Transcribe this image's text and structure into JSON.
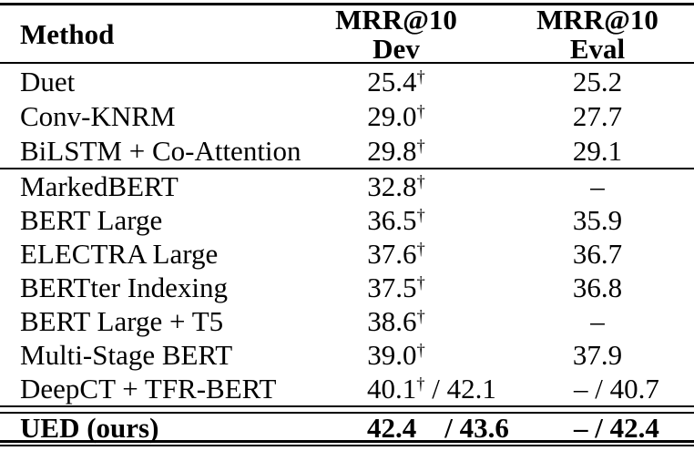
{
  "page": {
    "background_color": "#ffffff",
    "text_color": "#000000"
  },
  "table": {
    "header": {
      "method_label": "Method",
      "dev_col": {
        "line1": "MRR@10",
        "line2": "Dev"
      },
      "eval_col": {
        "line1": "MRR@10",
        "line2": "Eval"
      }
    },
    "dagger_symbol": "†",
    "sections": [
      {
        "rows": [
          {
            "method": "Duet",
            "dev": "25.4",
            "dev_sup": "†",
            "dev_extra": "",
            "eval": "25.2",
            "bold": false,
            "dual": false
          },
          {
            "method": "Conv-KNRM",
            "dev": "29.0",
            "dev_sup": "†",
            "dev_extra": "",
            "eval": "27.7",
            "bold": false,
            "dual": false
          },
          {
            "method": "BiLSTM + Co-Attention",
            "dev": "29.8",
            "dev_sup": "†",
            "dev_extra": "",
            "eval": "29.1",
            "bold": false,
            "dual": false
          }
        ]
      },
      {
        "rows": [
          {
            "method": "MarkedBERT",
            "dev": "32.8",
            "dev_sup": "†",
            "dev_extra": "",
            "eval": "–",
            "bold": false,
            "dual": false
          },
          {
            "method": "BERT Large",
            "dev": "36.5",
            "dev_sup": "†",
            "dev_extra": "",
            "eval": "35.9",
            "bold": false,
            "dual": false
          },
          {
            "method": "ELECTRA Large",
            "dev": "37.6",
            "dev_sup": "†",
            "dev_extra": "",
            "eval": "36.7",
            "bold": false,
            "dual": false
          },
          {
            "method": "BERTter Indexing",
            "dev": "37.5",
            "dev_sup": "†",
            "dev_extra": "",
            "eval": "36.8",
            "bold": false,
            "dual": false
          },
          {
            "method": "BERT Large + T5",
            "dev": "38.6",
            "dev_sup": "†",
            "dev_extra": "",
            "eval": "–",
            "bold": false,
            "dual": false
          },
          {
            "method": "Multi-Stage BERT",
            "dev": "39.0",
            "dev_sup": "†",
            "dev_extra": "",
            "eval": "37.9",
            "bold": false,
            "dual": false
          },
          {
            "method": "DeepCT + TFR-BERT",
            "dev": "40.1",
            "dev_sup": "†",
            "dev_extra": " / 42.1",
            "eval": "– / 40.7",
            "bold": false,
            "dual": true
          }
        ]
      },
      {
        "rows": [
          {
            "method": "UED (ours)",
            "dev": "42.4",
            "dev_sup": "",
            "dev_extra": "    / 43.6",
            "eval": "– / 42.4",
            "bold": true,
            "dual": true
          }
        ]
      }
    ]
  }
}
